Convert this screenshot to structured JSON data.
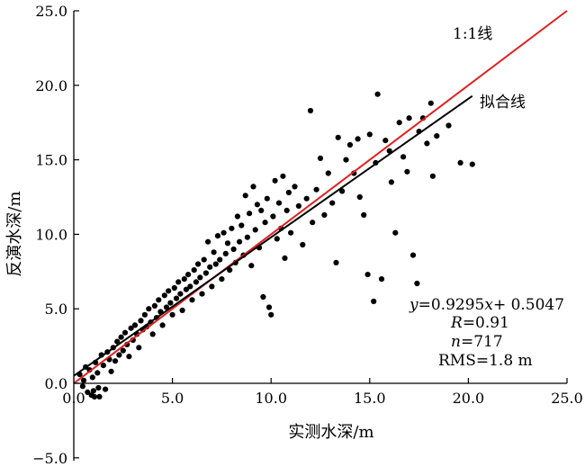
{
  "chart_data": {
    "type": "scatter",
    "xlabel": "实测水深/m",
    "ylabel": "反演水深/m",
    "xlim": [
      0,
      25
    ],
    "ylim": [
      -5,
      25
    ],
    "x_ticks": [
      "0.0",
      "5.0",
      "10.0",
      "15.0",
      "20.0",
      "25.0"
    ],
    "y_ticks": [
      "−5.0",
      "0.0",
      "5.0",
      "10.0",
      "15.0",
      "20.0",
      "25.0"
    ],
    "grid": false,
    "lines": [
      {
        "label": "1:1线",
        "x": [
          0,
          25
        ],
        "y": [
          0,
          25
        ],
        "color": "#e02020"
      },
      {
        "label": "拟合线",
        "x": [
          0,
          20.2
        ],
        "y": [
          0.5047,
          19.28
        ],
        "color": "#000000"
      }
    ],
    "fit": {
      "slope": 0.9295,
      "intercept": 0.5047
    },
    "annotations": {
      "equation": {
        "y": "y",
        "eq": "=0.9295",
        "x": "x",
        "rest": "+ 0.5047"
      },
      "r": {
        "sym": "R",
        "val": "=0.91"
      },
      "n": {
        "sym": "n",
        "val": "=717"
      },
      "rms": "RMS=1.8 m"
    },
    "points": [
      [
        0.3,
        0.6
      ],
      [
        0.5,
        0.2
      ],
      [
        0.6,
        1.1
      ],
      [
        0.8,
        0.9
      ],
      [
        0.9,
        -0.8
      ],
      [
        1.0,
        -0.5
      ],
      [
        1.1,
        1.4
      ],
      [
        1.2,
        0.7
      ],
      [
        1.3,
        -0.9
      ],
      [
        1.4,
        1.9
      ],
      [
        1.5,
        1.2
      ],
      [
        1.6,
        -0.4
      ],
      [
        1.7,
        2.1
      ],
      [
        1.8,
        1.6
      ],
      [
        1.9,
        0.8
      ],
      [
        2.0,
        2.4
      ],
      [
        2.1,
        1.5
      ],
      [
        2.2,
        2.8
      ],
      [
        2.3,
        1.9
      ],
      [
        2.4,
        3.1
      ],
      [
        2.5,
        2.2
      ],
      [
        2.6,
        3.4
      ],
      [
        2.7,
        2.6
      ],
      [
        2.8,
        1.8
      ],
      [
        2.9,
        3.7
      ],
      [
        3.0,
        2.9
      ],
      [
        3.1,
        3.9
      ],
      [
        3.2,
        3.3
      ],
      [
        3.3,
        2.4
      ],
      [
        3.4,
        4.2
      ],
      [
        3.5,
        3.6
      ],
      [
        3.6,
        4.6
      ],
      [
        3.7,
        3.8
      ],
      [
        3.8,
        5.0
      ],
      [
        3.9,
        4.1
      ],
      [
        4.0,
        3.3
      ],
      [
        4.1,
        5.2
      ],
      [
        4.2,
        4.4
      ],
      [
        4.3,
        5.6
      ],
      [
        4.4,
        4.8
      ],
      [
        4.5,
        3.9
      ],
      [
        4.6,
        5.9
      ],
      [
        4.7,
        5.1
      ],
      [
        4.8,
        6.2
      ],
      [
        4.9,
        5.4
      ],
      [
        5.0,
        4.6
      ],
      [
        5.1,
        6.4
      ],
      [
        5.2,
        5.7
      ],
      [
        5.3,
        6.8
      ],
      [
        5.4,
        6.0
      ],
      [
        5.5,
        4.9
      ],
      [
        5.6,
        7.0
      ],
      [
        5.7,
        6.3
      ],
      [
        5.8,
        7.3
      ],
      [
        5.9,
        6.5
      ],
      [
        6.0,
        5.6
      ],
      [
        6.1,
        7.6
      ],
      [
        6.2,
        6.8
      ],
      [
        6.3,
        8.0
      ],
      [
        6.4,
        7.1
      ],
      [
        6.5,
        6.0
      ],
      [
        6.6,
        8.3
      ],
      [
        6.7,
        7.4
      ],
      [
        6.8,
        9.5
      ],
      [
        6.9,
        7.8
      ],
      [
        7.0,
        6.5
      ],
      [
        7.1,
        8.8
      ],
      [
        7.2,
        8.0
      ],
      [
        7.3,
        9.9
      ],
      [
        7.4,
        8.3
      ],
      [
        7.5,
        7.0
      ],
      [
        7.6,
        10.1
      ],
      [
        7.7,
        8.7
      ],
      [
        7.8,
        9.4
      ],
      [
        7.9,
        7.6
      ],
      [
        8.0,
        10.4
      ],
      [
        8.1,
        9.0
      ],
      [
        8.2,
        8.1
      ],
      [
        8.3,
        11.2
      ],
      [
        8.4,
        9.5
      ],
      [
        8.5,
        10.6
      ],
      [
        8.6,
        8.6
      ],
      [
        8.7,
        12.6
      ],
      [
        8.8,
        9.8
      ],
      [
        8.9,
        11.4
      ],
      [
        9.0,
        7.9
      ],
      [
        9.1,
        13.2
      ],
      [
        9.2,
        10.3
      ],
      [
        9.3,
        12.0
      ],
      [
        9.4,
        9.1
      ],
      [
        9.5,
        11.6
      ],
      [
        9.6,
        5.8
      ],
      [
        9.7,
        10.8
      ],
      [
        9.8,
        12.4
      ],
      [
        9.9,
        5.1
      ],
      [
        10.0,
        4.6
      ],
      [
        10.1,
        11.2
      ],
      [
        10.2,
        13.6
      ],
      [
        10.3,
        9.7
      ],
      [
        10.4,
        12.1
      ],
      [
        10.5,
        10.4
      ],
      [
        10.6,
        13.9
      ],
      [
        10.7,
        8.4
      ],
      [
        10.8,
        11.6
      ],
      [
        10.9,
        12.8
      ],
      [
        11.0,
        10.1
      ],
      [
        11.2,
        13.2
      ],
      [
        11.4,
        11.9
      ],
      [
        11.6,
        9.3
      ],
      [
        11.8,
        12.4
      ],
      [
        12.0,
        18.3
      ],
      [
        12.1,
        10.8
      ],
      [
        12.3,
        13.0
      ],
      [
        12.5,
        15.1
      ],
      [
        12.7,
        11.3
      ],
      [
        12.9,
        14.1
      ],
      [
        13.1,
        12.1
      ],
      [
        13.3,
        8.1
      ],
      [
        13.4,
        16.5
      ],
      [
        13.6,
        12.9
      ],
      [
        13.8,
        15.0
      ],
      [
        14.0,
        16.0
      ],
      [
        14.2,
        14.1
      ],
      [
        14.4,
        16.4
      ],
      [
        14.5,
        12.5
      ],
      [
        14.7,
        11.3
      ],
      [
        14.9,
        7.3
      ],
      [
        15.0,
        16.7
      ],
      [
        15.2,
        5.5
      ],
      [
        15.3,
        14.8
      ],
      [
        15.4,
        19.4
      ],
      [
        15.6,
        7.0
      ],
      [
        15.8,
        16.3
      ],
      [
        16.0,
        15.6
      ],
      [
        16.1,
        13.5
      ],
      [
        16.3,
        10.1
      ],
      [
        16.5,
        17.5
      ],
      [
        16.7,
        15.2
      ],
      [
        16.9,
        14.2
      ],
      [
        17.0,
        17.8
      ],
      [
        17.2,
        8.6
      ],
      [
        17.4,
        6.7
      ],
      [
        17.5,
        16.9
      ],
      [
        17.7,
        17.8
      ],
      [
        17.9,
        16.1
      ],
      [
        18.1,
        18.8
      ],
      [
        18.2,
        13.9
      ],
      [
        18.4,
        16.6
      ],
      [
        19.0,
        17.3
      ],
      [
        19.6,
        14.8
      ],
      [
        20.2,
        14.7
      ],
      [
        0.7,
        -0.6
      ],
      [
        1.05,
        -0.9
      ],
      [
        1.25,
        -0.3
      ],
      [
        0.45,
        -0.2
      ],
      [
        0.95,
        0.4
      ]
    ]
  }
}
